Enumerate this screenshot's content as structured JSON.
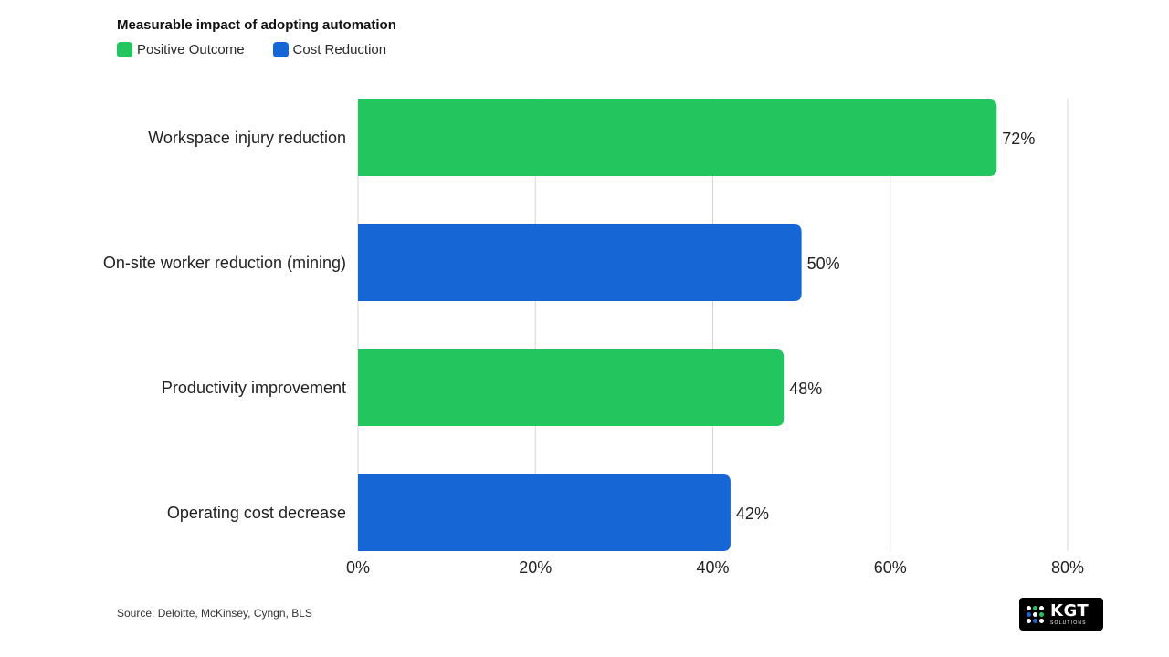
{
  "chart_data": {
    "type": "bar",
    "orientation": "horizontal",
    "title": "Measurable impact of adopting automation",
    "legend": [
      {
        "name": "Positive Outcome",
        "color": "#22c55e"
      },
      {
        "name": "Cost Reduction",
        "color": "#1766d6"
      }
    ],
    "legend_position": "top-left",
    "categories": [
      "Workspace injury reduction",
      "On-site worker reduction (mining)",
      "Productivity improvement",
      "Operating cost decrease"
    ],
    "values": [
      72,
      50,
      48,
      42
    ],
    "value_labels": [
      "72%",
      "50%",
      "48%",
      "42%"
    ],
    "bar_series": [
      "Positive Outcome",
      "Cost Reduction",
      "Positive Outcome",
      "Cost Reduction"
    ],
    "xlim": [
      0,
      80
    ],
    "x_ticks": [
      0,
      20,
      40,
      60,
      80
    ],
    "x_tick_labels": [
      "0%",
      "20%",
      "40%",
      "60%",
      "80%"
    ],
    "grid": true
  },
  "source": "Source: Deloitte, McKinsey, Cyngn, BLS",
  "logo": {
    "name": "kgt-logo",
    "text": "KGT",
    "subtext": "SOLUTIONS"
  }
}
